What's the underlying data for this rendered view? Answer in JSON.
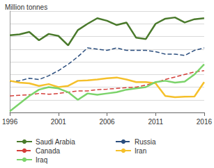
{
  "chart_data": {
    "type": "line",
    "ylabel": "Million tonnes",
    "x": [
      1996,
      1997,
      1998,
      1999,
      2000,
      2001,
      2002,
      2003,
      2004,
      2005,
      2006,
      2007,
      2008,
      2009,
      2010,
      2011,
      2012,
      2013,
      2014,
      2015,
      2016
    ],
    "xlim": [
      1996,
      2016
    ],
    "xticks": [
      1996,
      2001,
      2006,
      2011,
      2016
    ],
    "ylim": [
      0,
      400
    ],
    "yticks": [
      0,
      50,
      100,
      150,
      200,
      250,
      300,
      350,
      400
    ],
    "grid": true,
    "tick_labels": "x",
    "legend": "bottom",
    "series": [
      {
        "name": "Saudi Arabia",
        "color": "#4a7a2c",
        "line_style": "solid",
        "values": [
          305,
          308,
          318,
          285,
          310,
          302,
          265,
          325,
          350,
          372,
          362,
          345,
          355,
          295,
          290,
          350,
          370,
          375,
          355,
          368,
          372
        ]
      },
      {
        "name": "Russia",
        "color": "#2b4e7e",
        "line_style": "dashed",
        "values": [
          122,
          125,
          135,
          130,
          145,
          165,
          190,
          220,
          255,
          250,
          245,
          255,
          245,
          245,
          245,
          240,
          230,
          230,
          225,
          245,
          255
        ]
      },
      {
        "name": "Canada",
        "color": "#d43f3a",
        "line_style": "dashed",
        "values": [
          65,
          68,
          70,
          75,
          72,
          75,
          80,
          85,
          85,
          90,
          92,
          95,
          98,
          100,
          108,
          118,
          130,
          140,
          150,
          160,
          165
        ]
      },
      {
        "name": "Iran",
        "color": "#f5c02b",
        "line_style": "solid",
        "values": [
          125,
          118,
          115,
          105,
          112,
          100,
          105,
          125,
          127,
          130,
          135,
          138,
          130,
          120,
          120,
          115,
          65,
          60,
          62,
          63,
          120
        ]
      },
      {
        "name": "Iraq",
        "color": "#7bd36a",
        "line_style": "solid",
        "values": [
          5,
          35,
          65,
          90,
          100,
          95,
          80,
          50,
          75,
          70,
          75,
          80,
          90,
          95,
          100,
          120,
          125,
          118,
          122,
          150,
          190
        ]
      }
    ]
  }
}
